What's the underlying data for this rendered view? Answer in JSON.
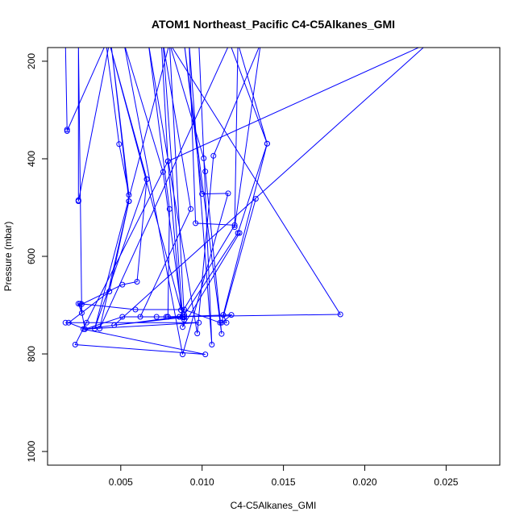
{
  "chart_data": {
    "type": "line",
    "title": "ATOM1 Northeast_Pacific C4-C5Alkanes_GMI",
    "xlabel": "C4-C5Alkanes_GMI",
    "ylabel": "Pressure (mbar)",
    "xlim": [
      0.0005,
      0.0283
    ],
    "ylim": [
      1028,
      172
    ],
    "y_reversed": true,
    "grid": false,
    "legend": "none",
    "x_ticks": [
      0.005,
      0.01,
      0.015,
      0.02,
      0.025
    ],
    "x_tick_labels": [
      "0.005",
      "0.010",
      "0.015",
      "0.020",
      "0.025"
    ],
    "y_ticks": [
      200,
      400,
      600,
      800,
      1000
    ],
    "y_tick_labels": [
      "200",
      "400",
      "600",
      "800",
      "1000"
    ],
    "colors": {
      "series": "#0000ff",
      "axis": "#000000"
    },
    "series": [
      {
        "points": [
          [
            0.0016,
            163
          ],
          [
            0.0017,
            340
          ],
          [
            0.0017,
            343
          ],
          [
            0.0041,
            163
          ],
          [
            0.0049,
            370
          ],
          [
            0.0055,
            474
          ],
          [
            0.0044,
            163
          ],
          [
            0.0055,
            487
          ],
          [
            0.0037,
            748
          ],
          [
            0.0117,
            163
          ],
          [
            0.014,
            369
          ],
          [
            0.0122,
            163
          ],
          [
            0.012,
            540
          ],
          [
            0.0136,
            163
          ],
          [
            0.0107,
            394
          ],
          [
            0.0097,
            758
          ],
          [
            0.0067,
            163
          ],
          [
            0.0075,
            163
          ],
          [
            0.0079,
            405
          ],
          [
            0.0087,
            710
          ],
          [
            0.0043,
            163
          ],
          [
            0.0066,
            442
          ],
          [
            0.0034,
            748
          ],
          [
            0.008,
            163
          ],
          [
            0.0101,
            399
          ],
          [
            0.0102,
            426
          ],
          [
            0.0112,
            759
          ],
          [
            0.0089,
            163
          ],
          [
            0.01,
            472
          ],
          [
            0.0116,
            471
          ],
          [
            0.0088,
            801
          ],
          [
            0.0052,
            163
          ],
          [
            0.0076,
            427
          ],
          [
            0.0088,
            725
          ],
          [
            0.0076,
            163
          ],
          [
            0.0093,
            503
          ],
          [
            0.0062,
            724
          ]
        ]
      },
      {
        "points": [
          [
            0.008,
            163
          ],
          [
            0.0098,
            163
          ],
          [
            0.0106,
            781
          ],
          [
            0.0092,
            163
          ],
          [
            0.0096,
            532
          ],
          [
            0.012,
            536
          ],
          [
            0.0086,
            724
          ],
          [
            0.0079,
            724
          ],
          [
            0.008,
            503
          ],
          [
            0.0067,
            163
          ],
          [
            0.0043,
            163
          ],
          [
            0.0024,
            487
          ],
          [
            0.0024,
            485
          ],
          [
            0.0024,
            163
          ],
          [
            0.0026,
            716
          ],
          [
            0.0024,
            697
          ],
          [
            0.0026,
            698
          ],
          [
            0.0051,
            658
          ],
          [
            0.006,
            652
          ],
          [
            0.0066,
            442
          ]
        ]
      },
      {
        "points": [
          [
            0.0133,
            482
          ],
          [
            0.0112,
            736
          ],
          [
            0.0118,
            720
          ],
          [
            0.0079,
            724
          ],
          [
            0.0051,
            724
          ],
          [
            0.0028,
            749
          ],
          [
            0.0025,
            697
          ],
          [
            0.0059,
            709
          ],
          [
            0.0089,
            709
          ],
          [
            0.0111,
            736
          ],
          [
            0.0115,
            736
          ],
          [
            0.0113,
            720
          ],
          [
            0.014,
            369
          ],
          [
            0.0122,
            552
          ],
          [
            0.0089,
            720
          ],
          [
            0.0089,
            730
          ],
          [
            0.0088,
            745
          ],
          [
            0.0123,
            552
          ]
        ]
      },
      {
        "points": [
          [
            0.0016,
            736
          ],
          [
            0.0029,
            736
          ],
          [
            0.0098,
            736
          ],
          [
            0.0028,
            749
          ],
          [
            0.0027,
            749
          ],
          [
            0.0102,
            801
          ],
          [
            0.0022,
            781
          ],
          [
            0.0079,
            405
          ],
          [
            0.0239,
            163
          ],
          [
            0.0046,
            741
          ],
          [
            0.0089,
            725
          ],
          [
            0.0072,
            724
          ],
          [
            0.0078,
            724
          ],
          [
            0.0185,
            719
          ],
          [
            0.008,
            163
          ],
          [
            0.0089,
            724
          ],
          [
            0.0086,
            724
          ],
          [
            0.0028,
            749
          ],
          [
            0.0018,
            736
          ],
          [
            0.0043,
            672
          ],
          [
            0.0055,
            487
          ]
        ]
      }
    ]
  }
}
